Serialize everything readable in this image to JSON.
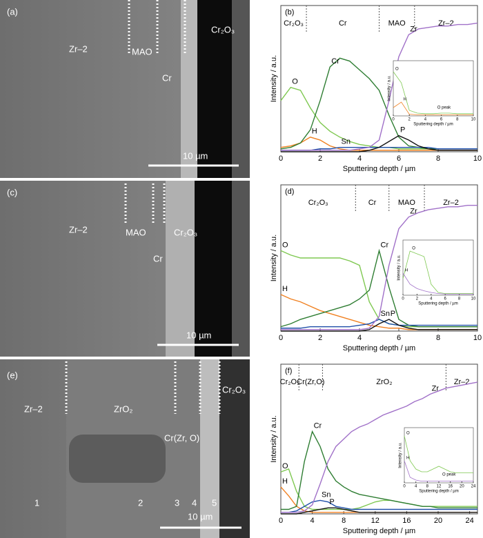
{
  "images": [
    {
      "labels": [
        "(a)",
        "Zr–2",
        "MAO",
        "Cr",
        "Cr₂O₃",
        "10 µm"
      ]
    },
    {
      "labels": [
        "(c)",
        "Zr–2",
        "MAO",
        "Cr",
        "Cr₂O₃",
        "10 µm"
      ]
    },
    {
      "labels": [
        "(e)",
        "Zr–2",
        "ZrO₂",
        "Cr(Zr, O)",
        "Cr₂O₃",
        "10 µm",
        "1",
        "2",
        "3",
        "4",
        "5"
      ]
    }
  ],
  "chart_data": [
    {
      "type": "line",
      "panel_label": "(b)",
      "xlabel": "Sputtering depth / µm",
      "ylabel": "Intensity / a.u.",
      "xlim": [
        0,
        10
      ],
      "ylim": [
        0,
        100
      ],
      "xticks": [
        0,
        2,
        4,
        6,
        8,
        10
      ],
      "x": [
        0,
        0.5,
        1,
        1.5,
        2,
        2.5,
        3,
        3.5,
        4,
        4.5,
        5,
        5.5,
        6,
        6.5,
        7,
        7.5,
        8,
        8.5,
        9,
        9.5,
        10
      ],
      "regions": {
        "labels": [
          "Cr₂O₃",
          "Cr",
          "MAO",
          "Zr–2"
        ],
        "boundaries": [
          1.3,
          5.0,
          6.8
        ]
      },
      "series": [
        {
          "name": "O",
          "color": "#7ec850",
          "values": [
            35,
            44,
            42,
            30,
            20,
            14,
            10,
            7,
            5,
            4,
            3,
            3,
            2,
            2,
            2,
            2,
            2,
            2,
            2,
            2,
            2
          ]
        },
        {
          "name": "H",
          "color": "#f08020",
          "values": [
            3,
            4,
            6,
            10,
            8,
            4,
            2,
            1,
            1,
            1,
            1,
            1,
            1,
            1,
            1,
            1,
            1,
            1,
            1,
            1,
            1
          ]
        },
        {
          "name": "Cr",
          "color": "#2e7d32",
          "values": [
            2,
            3,
            6,
            15,
            35,
            58,
            64,
            62,
            56,
            50,
            42,
            25,
            10,
            4,
            3,
            2,
            2,
            2,
            2,
            2,
            2
          ]
        },
        {
          "name": "Sn",
          "color": "#1f4fa8",
          "values": [
            1,
            1,
            1,
            1,
            2,
            2,
            3,
            3,
            3,
            3,
            3,
            3,
            3,
            3,
            3,
            3,
            2,
            2,
            2,
            2,
            2
          ]
        },
        {
          "name": "P",
          "color": "#111111",
          "values": [
            0,
            0,
            0,
            0,
            0,
            0,
            0,
            0,
            0,
            1,
            3,
            7,
            11,
            8,
            4,
            2,
            1,
            1,
            1,
            1,
            1
          ]
        },
        {
          "name": "Zr",
          "color": "#a070c8",
          "values": [
            1,
            1,
            1,
            1,
            1,
            1,
            1,
            1,
            2,
            3,
            8,
            35,
            65,
            80,
            84,
            85,
            86,
            86,
            87,
            87,
            88
          ]
        }
      ],
      "inset": {
        "type": "line",
        "xlabel": "Sputtering depth / µm",
        "ylabel": "Intensity / a.u.",
        "xlim": [
          0,
          10
        ],
        "ylim": [
          0,
          100
        ],
        "xticks": [
          0,
          2,
          4,
          6,
          8,
          10
        ],
        "x": [
          0,
          1,
          2,
          3,
          4,
          5,
          6,
          7,
          8,
          9,
          10
        ],
        "annotation": "O peak",
        "series": [
          {
            "name": "O",
            "color": "#7ec850",
            "values": [
              80,
              60,
              10,
              5,
              4,
              4,
              5,
              5,
              4,
              4,
              4
            ]
          },
          {
            "name": "H",
            "color": "#f08020",
            "values": [
              15,
              25,
              3,
              2,
              2,
              2,
              2,
              2,
              2,
              2,
              2
            ]
          }
        ]
      }
    },
    {
      "type": "line",
      "panel_label": "(d)",
      "xlabel": "Sputtering depth / µm",
      "ylabel": "Intensity / a.u.",
      "xlim": [
        0,
        10
      ],
      "ylim": [
        0,
        100
      ],
      "xticks": [
        0,
        2,
        4,
        6,
        8,
        10
      ],
      "x": [
        0,
        0.5,
        1,
        1.5,
        2,
        2.5,
        3,
        3.5,
        4,
        4.5,
        5,
        5.5,
        6,
        6.5,
        7,
        7.5,
        8,
        8.5,
        9,
        9.5,
        10
      ],
      "regions": {
        "labels": [
          "Cr₂O₃",
          "Cr",
          "MAO",
          "Zr–2"
        ],
        "boundaries": [
          3.8,
          5.5,
          7.3
        ]
      },
      "series": [
        {
          "name": "O",
          "color": "#7ec850",
          "values": [
            55,
            52,
            50,
            50,
            50,
            50,
            50,
            48,
            45,
            20,
            8,
            5,
            4,
            3,
            3,
            3,
            3,
            3,
            3,
            3,
            3
          ]
        },
        {
          "name": "H",
          "color": "#f08020",
          "values": [
            25,
            22,
            20,
            17,
            14,
            12,
            10,
            8,
            6,
            4,
            3,
            2,
            2,
            1,
            1,
            1,
            1,
            1,
            1,
            1,
            1
          ]
        },
        {
          "name": "Cr",
          "color": "#2e7d32",
          "values": [
            3,
            5,
            8,
            10,
            12,
            14,
            16,
            18,
            22,
            28,
            55,
            30,
            8,
            4,
            3,
            3,
            3,
            3,
            3,
            3,
            3
          ]
        },
        {
          "name": "Sn",
          "color": "#1f4fa8",
          "values": [
            2,
            2,
            2,
            3,
            3,
            3,
            3,
            3,
            4,
            5,
            8,
            5,
            4,
            4,
            4,
            4,
            4,
            4,
            4,
            4,
            4
          ]
        },
        {
          "name": "P",
          "color": "#111111",
          "values": [
            0,
            0,
            0,
            0,
            0,
            0,
            0,
            0,
            0,
            1,
            5,
            8,
            4,
            2,
            1,
            1,
            1,
            1,
            1,
            1,
            1
          ]
        },
        {
          "name": "Zr",
          "color": "#a070c8",
          "values": [
            1,
            1,
            1,
            1,
            1,
            1,
            1,
            1,
            1,
            2,
            10,
            45,
            70,
            78,
            81,
            83,
            84,
            85,
            85,
            86,
            86
          ]
        }
      ],
      "inset": {
        "type": "line",
        "xlabel": "Sputtering depth / µm",
        "ylabel": "Intensity / a.u.",
        "xlim": [
          0,
          10
        ],
        "ylim": [
          0,
          100
        ],
        "xticks": [
          0,
          2,
          4,
          6,
          8,
          10
        ],
        "x": [
          0,
          1,
          2,
          3,
          4,
          5,
          6,
          7,
          8,
          9,
          10
        ],
        "series": [
          {
            "name": "O",
            "color": "#7ec850",
            "values": [
              30,
              80,
              75,
              70,
              20,
              5,
              3,
              3,
              3,
              3,
              3
            ]
          },
          {
            "name": "H",
            "color": "#a070c8",
            "values": [
              40,
              20,
              12,
              8,
              5,
              3,
              2,
              2,
              2,
              2,
              2
            ]
          }
        ]
      }
    },
    {
      "type": "line",
      "panel_label": "(f)",
      "xlabel": "Sputtering depth / µm",
      "ylabel": "Intensity / a.u.",
      "xlim": [
        0,
        25
      ],
      "ylim": [
        0,
        100
      ],
      "xticks": [
        0,
        4,
        8,
        12,
        16,
        20,
        24
      ],
      "x": [
        0,
        1,
        2,
        3,
        4,
        5,
        6,
        7,
        8,
        9,
        10,
        11,
        12,
        13,
        14,
        15,
        16,
        17,
        18,
        19,
        20,
        21,
        22,
        23,
        24,
        25
      ],
      "regions": {
        "labels": [
          "Cr₂O₃",
          "Cr(Zr,O)",
          "ZrO₂",
          "Zr–2"
        ],
        "boundaries": [
          2.3,
          5.3,
          21.0
        ]
      },
      "series": [
        {
          "name": "O",
          "color": "#7ec850",
          "values": [
            28,
            30,
            15,
            5,
            3,
            3,
            3,
            3,
            3,
            3,
            4,
            6,
            8,
            9,
            9,
            8,
            7,
            6,
            5,
            5,
            5,
            5,
            5,
            5,
            5,
            5
          ]
        },
        {
          "name": "H",
          "color": "#f08020",
          "values": [
            18,
            12,
            5,
            2,
            1,
            1,
            1,
            1,
            1,
            1,
            1,
            1,
            1,
            1,
            1,
            1,
            1,
            1,
            1,
            1,
            1,
            1,
            1,
            1,
            1,
            1
          ]
        },
        {
          "name": "Cr",
          "color": "#2e7d32",
          "values": [
            3,
            3,
            5,
            35,
            55,
            45,
            30,
            22,
            18,
            15,
            13,
            12,
            11,
            10,
            9,
            8,
            7,
            6,
            5,
            5,
            4,
            4,
            4,
            4,
            4,
            4
          ]
        },
        {
          "name": "Sn",
          "color": "#1f4fa8",
          "values": [
            1,
            1,
            2,
            5,
            8,
            9,
            8,
            5,
            4,
            3,
            3,
            3,
            3,
            3,
            3,
            3,
            3,
            3,
            3,
            3,
            3,
            3,
            3,
            3,
            3,
            3
          ]
        },
        {
          "name": "P",
          "color": "#111111",
          "values": [
            0,
            0,
            0,
            1,
            2,
            3,
            4,
            4,
            3,
            2,
            1,
            1,
            1,
            1,
            1,
            1,
            1,
            1,
            1,
            1,
            1,
            1,
            1,
            1,
            1,
            1
          ]
        },
        {
          "name": "Zr",
          "color": "#a070c8",
          "values": [
            1,
            1,
            1,
            2,
            6,
            20,
            35,
            45,
            50,
            55,
            58,
            60,
            63,
            66,
            68,
            70,
            72,
            75,
            77,
            80,
            82,
            84,
            85,
            86,
            87,
            88
          ]
        }
      ],
      "inset": {
        "type": "line",
        "xlabel": "Sputtering depth / µm",
        "ylabel": "Intensity / a.u.",
        "xlim": [
          0,
          24
        ],
        "ylim": [
          0,
          100
        ],
        "xticks": [
          0,
          4,
          8,
          12,
          16,
          20,
          24
        ],
        "x": [
          0,
          2,
          4,
          6,
          8,
          10,
          12,
          14,
          16,
          18,
          20,
          22,
          24
        ],
        "annotation": "O peak",
        "series": [
          {
            "name": "O",
            "color": "#7ec850",
            "values": [
              85,
              40,
              25,
              20,
              20,
              25,
              30,
              25,
              20,
              18,
              18,
              18,
              18
            ]
          },
          {
            "name": "H",
            "color": "#a070c8",
            "values": [
              40,
              10,
              5,
              3,
              3,
              3,
              3,
              3,
              3,
              3,
              3,
              3,
              3
            ]
          }
        ]
      }
    }
  ]
}
